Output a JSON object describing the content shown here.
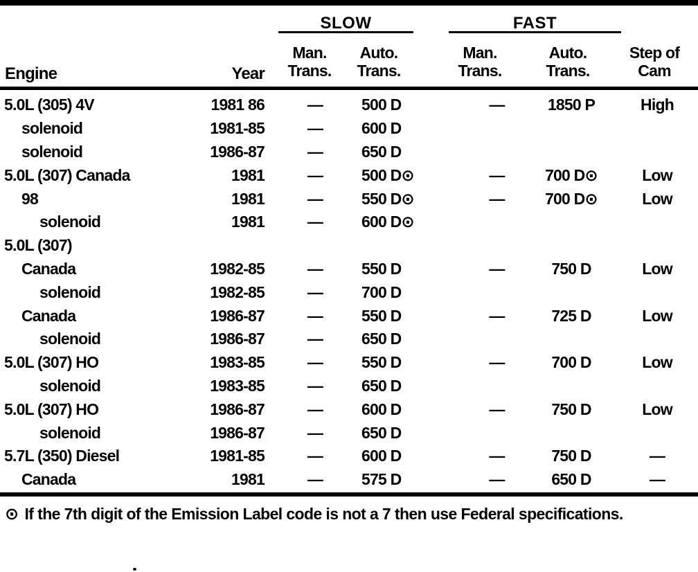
{
  "table": {
    "column_headers": {
      "engine": "Engine",
      "year": "Year",
      "slow_group": "SLOW",
      "fast_group": "FAST",
      "slow_man_trans": "Man.\nTrans.",
      "slow_auto_trans": "Auto.\nTrans.",
      "fast_man_trans": "Man.\nTrans.",
      "fast_auto_trans": "Auto.\nTrans.",
      "step_of_cam": "Step of\nCam"
    },
    "rows": [
      {
        "engine": "5.0L (305) 4V",
        "year": "1981 86",
        "slow_man": "—",
        "slow_auto": "500 D",
        "fast_man": "—",
        "fast_auto": "1850 P",
        "step_of_cam": "High"
      },
      {
        "engine": "solenoid",
        "year": "1981-85",
        "slow_man": "—",
        "slow_auto": "600 D",
        "fast_man": "",
        "fast_auto": "",
        "step_of_cam": ""
      },
      {
        "engine": "solenoid",
        "year": "1986-87",
        "slow_man": "—",
        "slow_auto": "650 D",
        "fast_man": "",
        "fast_auto": "",
        "step_of_cam": ""
      },
      {
        "engine": "5.0L (307) Canada",
        "year": "1981",
        "slow_man": "—",
        "slow_auto": "500 D⊙",
        "fast_man": "—",
        "fast_auto": "700 D⊙",
        "step_of_cam": "Low"
      },
      {
        "engine": "98",
        "year": "1981",
        "slow_man": "—",
        "slow_auto": "550 D⊙",
        "fast_man": "—",
        "fast_auto": "700 D⊙",
        "step_of_cam": "Low"
      },
      {
        "engine": "solenoid",
        "year": "1981",
        "slow_man": "—",
        "slow_auto": "600 D⊙",
        "fast_man": "",
        "fast_auto": "",
        "step_of_cam": ""
      },
      {
        "engine": "5.0L (307)",
        "year": "",
        "slow_man": "",
        "slow_auto": "",
        "fast_man": "",
        "fast_auto": "",
        "step_of_cam": ""
      },
      {
        "engine": "Canada",
        "year": "1982-85",
        "slow_man": "—",
        "slow_auto": "550 D",
        "fast_man": "—",
        "fast_auto": "750 D",
        "step_of_cam": "Low"
      },
      {
        "engine": "solenoid",
        "year": "1982-85",
        "slow_man": "—",
        "slow_auto": "700 D",
        "fast_man": "",
        "fast_auto": "",
        "step_of_cam": ""
      },
      {
        "engine": "Canada",
        "year": "1986-87",
        "slow_man": "—",
        "slow_auto": "550 D",
        "fast_man": "—",
        "fast_auto": "725 D",
        "step_of_cam": "Low"
      },
      {
        "engine": "solenoid",
        "year": "1986-87",
        "slow_man": "—",
        "slow_auto": "650 D",
        "fast_man": "",
        "fast_auto": "",
        "step_of_cam": ""
      },
      {
        "engine": "5.0L (307) HO",
        "year": "1983-85",
        "slow_man": "—",
        "slow_auto": "550 D",
        "fast_man": "—",
        "fast_auto": "700 D",
        "step_of_cam": "Low"
      },
      {
        "engine": "solenoid",
        "year": "1983-85",
        "slow_man": "—",
        "slow_auto": "650 D",
        "fast_man": "",
        "fast_auto": "",
        "step_of_cam": ""
      },
      {
        "engine": "5.0L (307) HO",
        "year": "1986-87",
        "slow_man": "—",
        "slow_auto": "600 D",
        "fast_man": "—",
        "fast_auto": "750 D",
        "step_of_cam": "Low"
      },
      {
        "engine": "solenoid",
        "year": "1986-87",
        "slow_man": "—",
        "slow_auto": "650 D",
        "fast_man": "",
        "fast_auto": "",
        "step_of_cam": ""
      },
      {
        "engine": "5.7L (350) Diesel",
        "year": "1981-85",
        "slow_man": "—",
        "slow_auto": "600 D",
        "fast_man": "—",
        "fast_auto": "750 D",
        "step_of_cam": "—"
      },
      {
        "engine": "Canada",
        "year": "1981",
        "slow_man": "—",
        "slow_auto": "575 D",
        "fast_man": "—",
        "fast_auto": "650 D",
        "step_of_cam": "—"
      }
    ]
  },
  "footnote": {
    "symbol": "⊙",
    "text": "If the 7th digit of the Emission Label code is not a 7 then use Federal specifications."
  }
}
